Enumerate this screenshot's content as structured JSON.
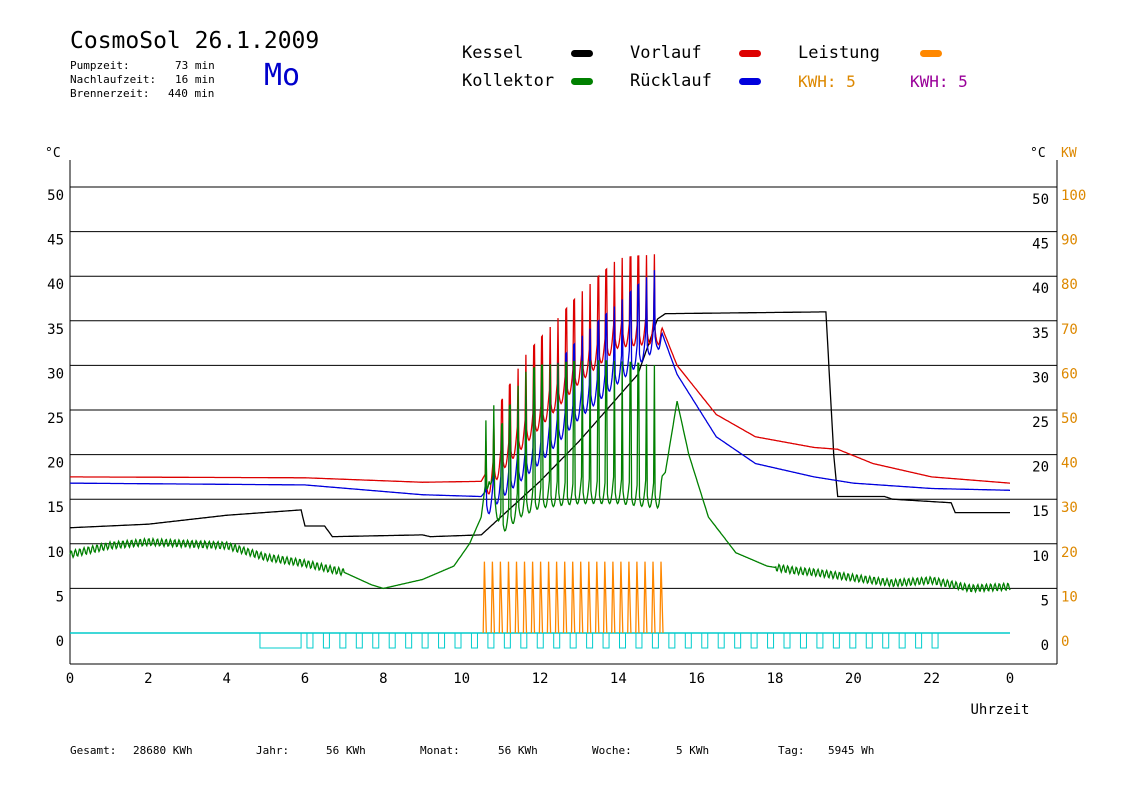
{
  "header": {
    "title": "CosmoSol 26.1.2009",
    "stats": [
      {
        "label": "Pumpzeit:",
        "value": "73 min"
      },
      {
        "label": "Nachlaufzeit:",
        "value": "16 min"
      },
      {
        "label": "Brennerzeit:",
        "value": "440 min"
      }
    ],
    "day": "Mo"
  },
  "legend": {
    "kessel": {
      "label": "Kessel",
      "color": "#000000"
    },
    "vorlauf": {
      "label": "Vorlauf",
      "color": "#dd0000"
    },
    "leistung": {
      "label": "Leistung",
      "color": "#ff8800"
    },
    "kollektor": {
      "label": "Kollektor",
      "color": "#008000"
    },
    "ruecklauf": {
      "label": "Rücklauf",
      "color": "#0000dd"
    },
    "kwh1": {
      "text": "KWH: 5",
      "color": "#dd8800"
    },
    "kwh2": {
      "text": "KWH: 5",
      "color": "#990099"
    }
  },
  "footer": {
    "gesamt_label": "Gesamt:",
    "gesamt_value": "28680 KWh",
    "jahr_label": "Jahr:",
    "jahr_value": "56 KWh",
    "monat_label": "Monat:",
    "monat_value": "56 KWh",
    "woche_label": "Woche:",
    "woche_value": "5 KWh",
    "tag_label": "Tag:",
    "tag_value": "5945 Wh"
  },
  "chart_data": {
    "type": "line",
    "xlabel": "Uhrzeit",
    "ylabel_left": "°C",
    "ylabel_right_1": "°C",
    "ylabel_right_2": "KW",
    "xlim": [
      0,
      24
    ],
    "ylim": [
      0,
      50
    ],
    "ylim_kw": [
      0,
      100
    ],
    "grid": true,
    "x_ticks": [
      "0",
      "2",
      "4",
      "6",
      "8",
      "10",
      "12",
      "14",
      "16",
      "18",
      "20",
      "22",
      "0"
    ],
    "y_ticks": [
      0,
      5,
      10,
      15,
      20,
      25,
      30,
      35,
      40,
      45,
      50
    ],
    "y_ticks_kw": [
      0,
      10,
      20,
      30,
      40,
      50,
      60,
      70,
      80,
      90,
      100
    ],
    "series": [
      {
        "name": "Kessel",
        "color": "#000000",
        "points": [
          [
            0,
            11.8
          ],
          [
            2,
            12.2
          ],
          [
            4,
            13.2
          ],
          [
            5.9,
            13.8
          ],
          [
            6,
            12
          ],
          [
            6.5,
            12
          ],
          [
            6.7,
            10.8
          ],
          [
            9,
            11
          ],
          [
            9.2,
            10.8
          ],
          [
            10.5,
            11
          ],
          [
            11,
            13
          ],
          [
            12,
            17
          ],
          [
            13,
            21.5
          ],
          [
            14,
            26.5
          ],
          [
            14.5,
            29
          ],
          [
            15,
            35.2
          ],
          [
            15.2,
            35.8
          ],
          [
            19.3,
            36
          ],
          [
            19.5,
            20
          ],
          [
            19.6,
            15.3
          ],
          [
            20.8,
            15.3
          ],
          [
            21,
            15
          ],
          [
            22.5,
            14.6
          ],
          [
            22.6,
            13.5
          ],
          [
            24,
            13.5
          ]
        ]
      },
      {
        "name": "Vorlauf",
        "color": "#dd0000",
        "points": [
          [
            0,
            17.5
          ],
          [
            6,
            17.4
          ],
          [
            9,
            16.9
          ],
          [
            10.5,
            17
          ],
          [
            11,
            21
          ],
          [
            12,
            26
          ],
          [
            13,
            31
          ],
          [
            14,
            35
          ],
          [
            15,
            35.5
          ],
          [
            15.5,
            30
          ],
          [
            16.5,
            24.5
          ],
          [
            17.5,
            22
          ],
          [
            19,
            20.8
          ],
          [
            19.6,
            20.6
          ],
          [
            20.5,
            19
          ],
          [
            22,
            17.5
          ],
          [
            24,
            16.8
          ]
        ]
      },
      {
        "name": "Rücklauf",
        "color": "#0000dd",
        "points": [
          [
            0,
            16.8
          ],
          [
            6,
            16.6
          ],
          [
            9,
            15.5
          ],
          [
            10.5,
            15.3
          ],
          [
            11,
            18
          ],
          [
            12,
            22
          ],
          [
            13,
            27
          ],
          [
            14,
            31
          ],
          [
            15,
            35
          ],
          [
            15.5,
            29
          ],
          [
            16.5,
            22
          ],
          [
            17.5,
            19
          ],
          [
            19,
            17.5
          ],
          [
            20,
            16.8
          ],
          [
            22,
            16.2
          ],
          [
            24,
            16
          ]
        ]
      },
      {
        "name": "Kollektor",
        "color": "#008000",
        "points": [
          [
            0,
            8.8
          ],
          [
            1,
            9.8
          ],
          [
            2,
            10.2
          ],
          [
            3,
            10
          ],
          [
            4,
            9.8
          ],
          [
            5,
            8.5
          ],
          [
            6,
            7.8
          ],
          [
            7,
            6.8
          ],
          [
            7.7,
            5.4
          ],
          [
            8,
            5
          ],
          [
            9,
            6
          ],
          [
            9.8,
            7.5
          ],
          [
            10.2,
            10
          ],
          [
            10.5,
            13
          ],
          [
            10.7,
            20
          ],
          [
            11,
            14
          ],
          [
            11.5,
            16
          ],
          [
            12,
            17
          ],
          [
            13,
            17.5
          ],
          [
            14,
            17.5
          ],
          [
            15,
            17
          ],
          [
            15.2,
            18
          ],
          [
            15.5,
            26
          ],
          [
            15.8,
            20
          ],
          [
            16.3,
            13
          ],
          [
            17,
            9
          ],
          [
            17.8,
            7.5
          ],
          [
            18.5,
            7
          ],
          [
            19,
            6.8
          ],
          [
            20,
            6.2
          ],
          [
            21,
            5.6
          ],
          [
            22,
            5.9
          ],
          [
            23,
            5
          ],
          [
            24,
            5.2
          ]
        ]
      },
      {
        "name": "Leistung",
        "color": "#ff8800",
        "points": [
          [
            10.5,
            0
          ],
          [
            15.2,
            0
          ]
        ]
      }
    ]
  }
}
